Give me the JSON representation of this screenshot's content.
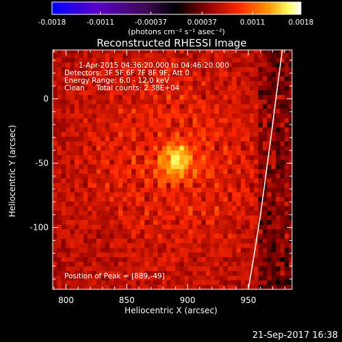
{
  "chart_data": {
    "type": "heatmap",
    "title": "Reconstructed RHESSI Image",
    "xlabel": "Heliocentric X (arcsec)",
    "ylabel": "Heliocentric Y (arcsec)",
    "xlim": [
      789,
      986
    ],
    "ylim": [
      -148,
      38
    ],
    "x_ticks": [
      800,
      850,
      900,
      950
    ],
    "y_ticks": [
      0,
      -50,
      -100
    ],
    "colorbar": {
      "range": [
        -0.0018,
        0.0018
      ],
      "ticks": [
        "-0.0018",
        "-0.0011",
        "-0.00037",
        "0.00037",
        "0.0011",
        "0.0018"
      ],
      "units_label": "(photons cm⁻² s⁻¹ asec⁻²)"
    },
    "annotations": [
      "1-Apr-2015 04:36:20.000 to 04:46:20.000",
      "Detectors: 3F 5F 6F 7F 8F 9F, Att 0",
      "Energy Range: 6.0 - 12.0 keV",
      "Clean     Total counts: 2.38E+04"
    ],
    "peak_label": "Position of Peak = [889,-49]",
    "peak": [
      889,
      -49
    ],
    "peak_value": 0.0018,
    "limb_curve": [
      [
        950,
        -148
      ],
      [
        955,
        -120
      ],
      [
        960,
        -90
      ],
      [
        965,
        -55
      ],
      [
        970,
        -20
      ],
      [
        974,
        10
      ],
      [
        978,
        38
      ]
    ],
    "colors": {
      "limb": "#ffffff",
      "colormap": [
        "#0000ff",
        "#5a00c8",
        "#3c0a50",
        "#000000",
        "#8a0000",
        "#ff2800",
        "#ff9600",
        "#ffff64",
        "#ffffff"
      ]
    }
  },
  "footer": {
    "timestamp": "21-Sep-2017 16:38"
  }
}
